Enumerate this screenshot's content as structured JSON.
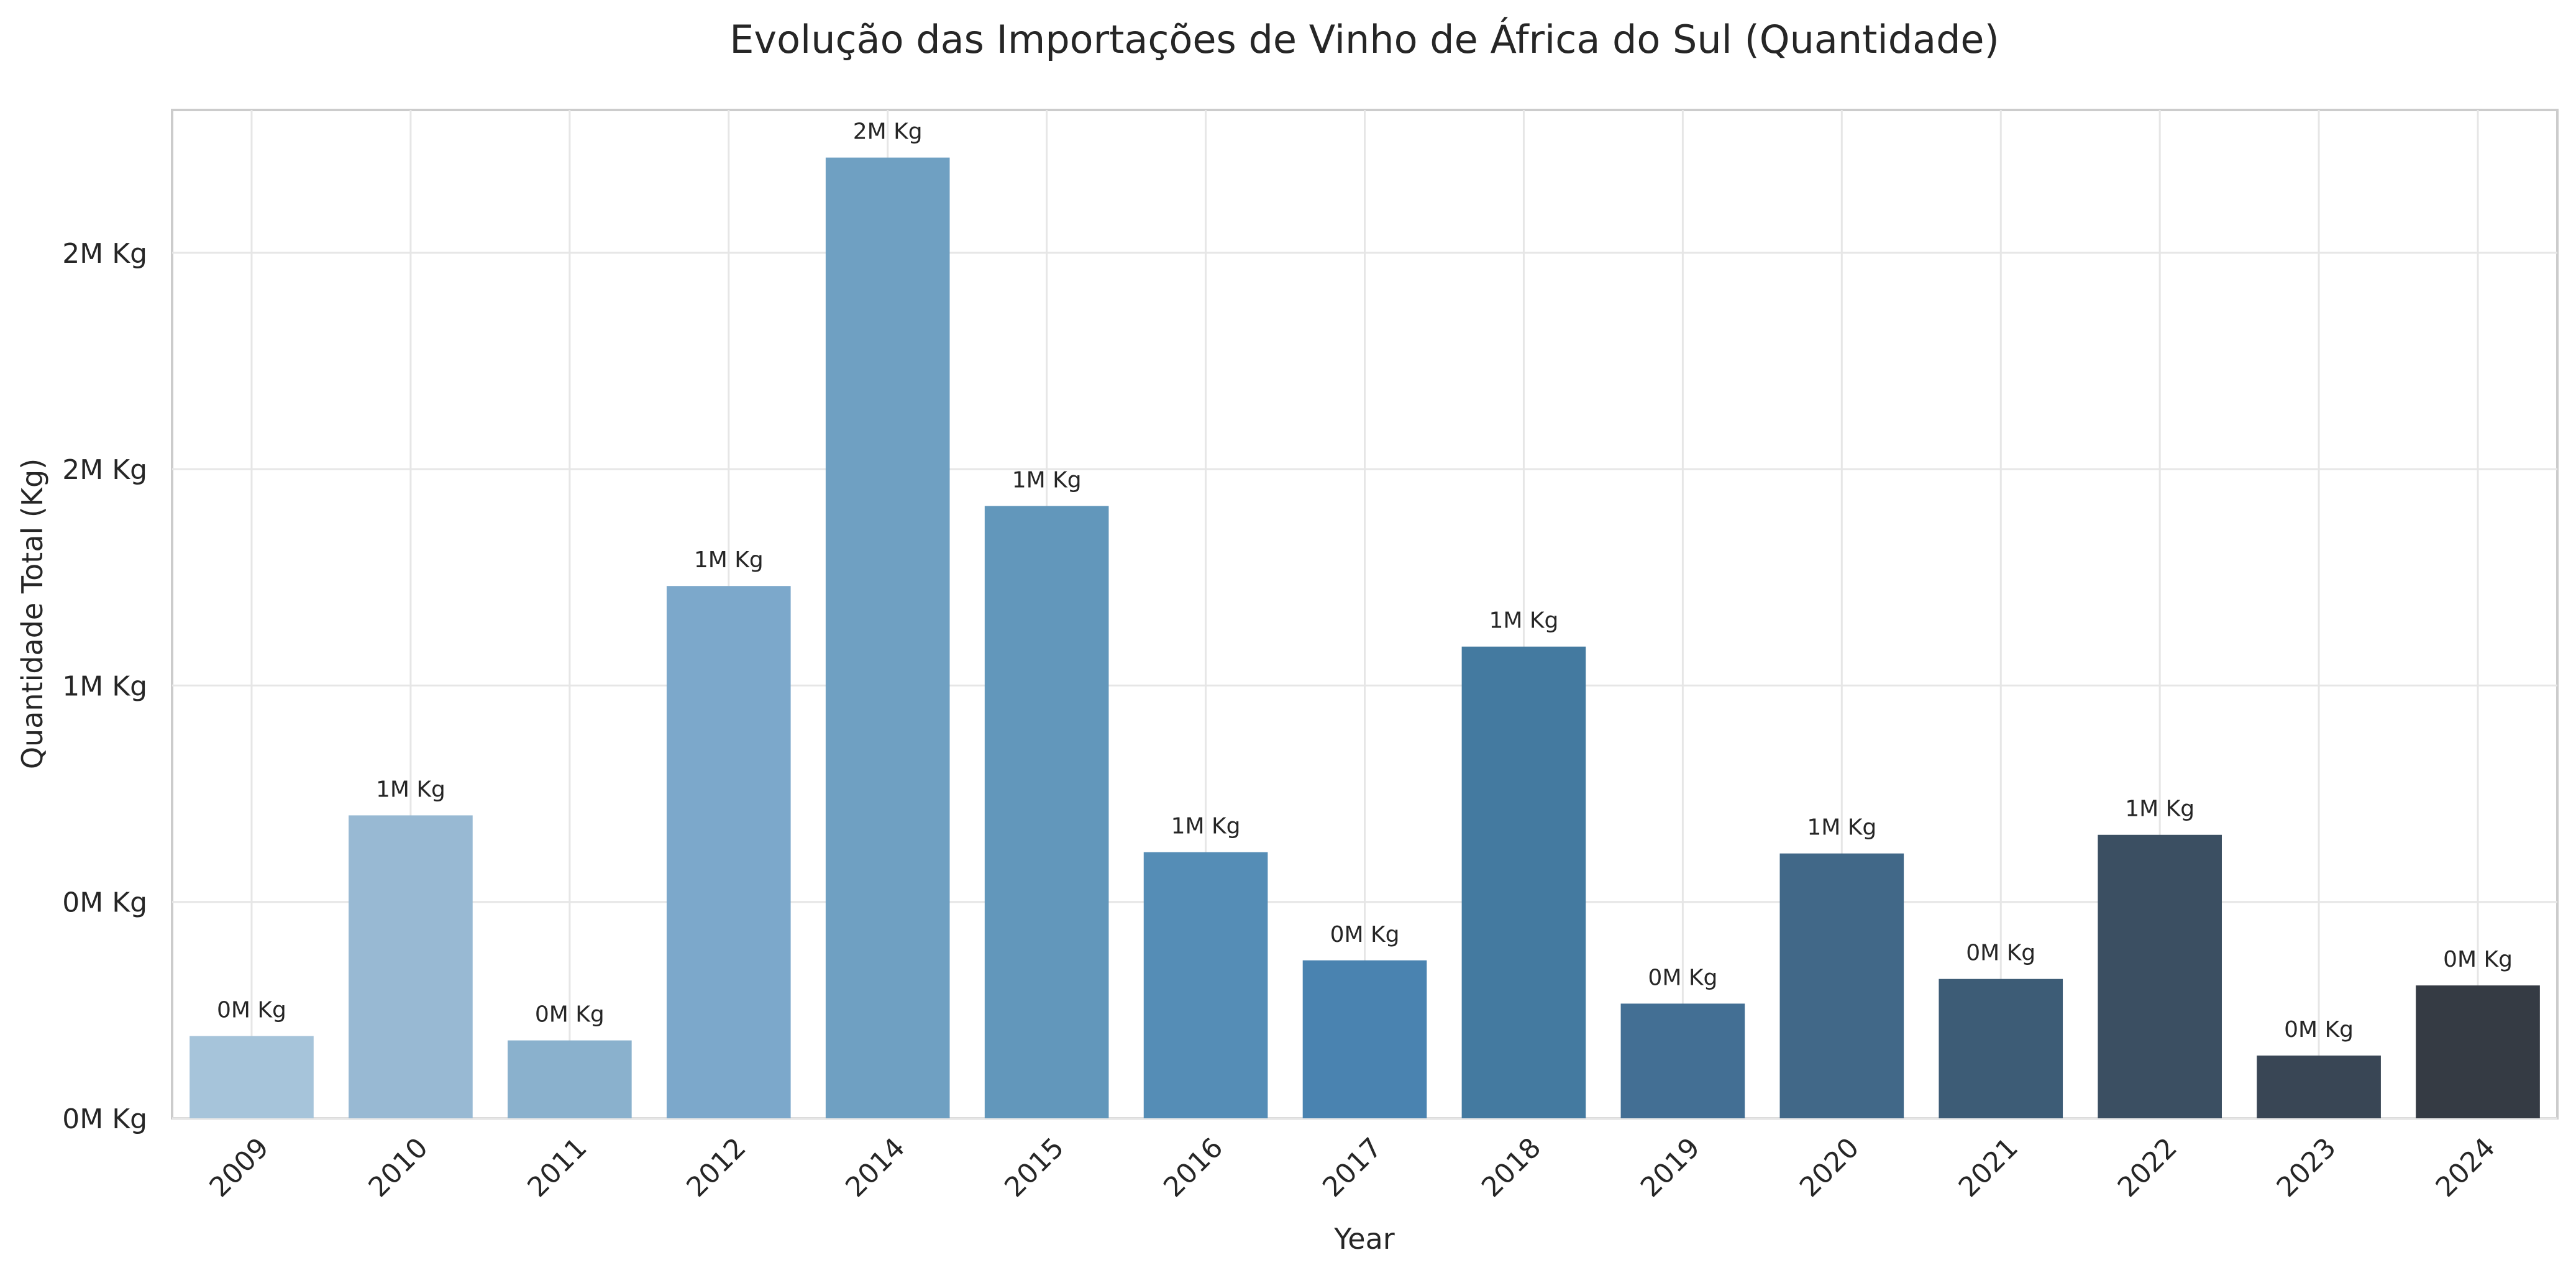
{
  "chart_data": {
    "type": "bar",
    "title": "Evolução das Importações de Vinho de África do Sul (Quantidade)",
    "xlabel": "Year",
    "ylabel": "Quantidade Total (Kg)",
    "categories": [
      "2009",
      "2010",
      "2011",
      "2012",
      "2014",
      "2015",
      "2016",
      "2017",
      "2018",
      "2019",
      "2020",
      "2021",
      "2022",
      "2023",
      "2024"
    ],
    "values": [
      190000,
      700000,
      180000,
      1230000,
      2220000,
      1415000,
      615000,
      365000,
      1090000,
      265000,
      612000,
      322000,
      655000,
      145000,
      307000
    ],
    "data_labels": [
      "0M Kg",
      "1M Kg",
      "0M Kg",
      "1M Kg",
      "2M Kg",
      "1M Kg",
      "1M Kg",
      "0M Kg",
      "1M Kg",
      "0M Kg",
      "1M Kg",
      "0M Kg",
      "1M Kg",
      "0M Kg",
      "0M Kg"
    ],
    "yticks": [
      0,
      500000,
      1000000,
      1500000,
      2000000
    ],
    "ytick_labels": [
      "0M Kg",
      "0M Kg",
      "1M Kg",
      "2M Kg",
      "2M Kg"
    ],
    "ylim": [
      0,
      2330000
    ],
    "grid": true,
    "legend": "none",
    "colors": [
      "#a6c4da",
      "#98b9d3",
      "#8ab1cd",
      "#7ca8cb",
      "#6fa0c2",
      "#6297bb",
      "#558db6",
      "#4a83b0",
      "#447aa0",
      "#436f94",
      "#416888",
      "#3d5c76",
      "#3b4f62",
      "#394655",
      "#353b44"
    ]
  }
}
